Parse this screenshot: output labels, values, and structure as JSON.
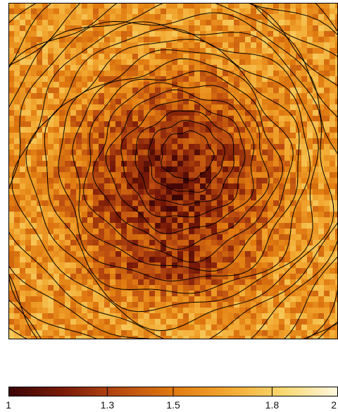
{
  "chart_data": {
    "type": "heatmap",
    "title": "",
    "xlabel": "",
    "ylabel": "",
    "grid": false,
    "colorbar": {
      "min": 1,
      "max": 2,
      "ticks": [
        {
          "value": 1.0,
          "label": "1"
        },
        {
          "value": 1.3,
          "label": "1.3"
        },
        {
          "value": 1.5,
          "label": "1.5"
        },
        {
          "value": 1.8,
          "label": "1.8"
        },
        {
          "value": 2.0,
          "label": "2"
        }
      ],
      "colormap": [
        "#3a0505",
        "#7a1a08",
        "#b84a10",
        "#e07a10",
        "#f2a830",
        "#f8d870",
        "#fff8e0"
      ]
    },
    "contours": {
      "color": "#000000",
      "center": [
        0.49,
        0.53
      ],
      "peak": [
        0.55,
        0.44
      ],
      "levels": 18
    },
    "map_description_values": {
      "background_level": 1.6,
      "dark_core_level": 1.1
    }
  }
}
